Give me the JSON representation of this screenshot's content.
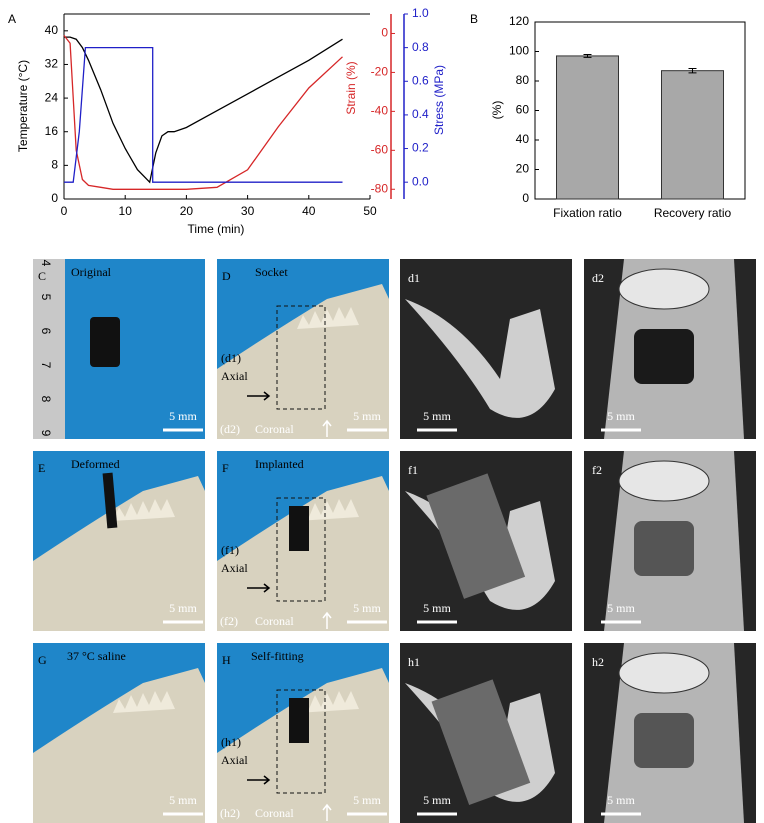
{
  "chart_data": [
    {
      "type": "line",
      "panel_label": "A",
      "xlabel": "Time (min)",
      "xlim": [
        0,
        50
      ],
      "xticks": [
        0,
        10,
        20,
        30,
        40,
        50
      ],
      "ylabel": "Temperature (°C)",
      "ylim": [
        0,
        44
      ],
      "yticks": [
        0,
        8,
        16,
        24,
        32,
        40
      ],
      "y2label": "Strain (%)",
      "y2lim": [
        -85,
        10
      ],
      "y2ticks": [
        -80,
        -60,
        -40,
        -20,
        0
      ],
      "y2color": "#d62728",
      "y3label": "Stress (MPa)",
      "y3lim": [
        -0.1,
        1.0
      ],
      "y3color": "#2020c8",
      "y3ticks": [
        {
          "value": 0,
          "label": "0.0"
        },
        {
          "value": 0.2,
          "label": "0.2"
        },
        {
          "value": 0.4,
          "label": "0.4"
        },
        {
          "value": 0.6,
          "label": "0.6"
        },
        {
          "value": 0.8,
          "label": "0.8"
        },
        {
          "value": 1.0,
          "label": "1.0"
        }
      ],
      "series": [
        {
          "axis": "y",
          "color": "#000000",
          "x": [
            0,
            1,
            2,
            3,
            4,
            6,
            8,
            10,
            12,
            14,
            15,
            16,
            17,
            18,
            20,
            25,
            30,
            35,
            40,
            45.5
          ],
          "values": [
            38.5,
            38.5,
            38,
            36,
            33,
            26,
            18,
            12,
            7,
            4,
            11,
            15,
            16,
            16,
            17,
            21,
            25,
            29,
            33,
            38
          ]
        },
        {
          "axis": "y2",
          "color": "#d62728",
          "x": [
            0,
            1,
            2,
            3,
            4,
            6,
            8,
            10,
            12,
            14,
            15,
            16,
            17,
            18,
            20,
            25,
            30,
            35,
            40,
            45.5
          ],
          "values": [
            -1,
            -5,
            -60,
            -75,
            -78,
            -79,
            -80,
            -80,
            -80,
            -80,
            -80,
            -80,
            -80,
            -80,
            -80,
            -79,
            -70,
            -48,
            -28,
            -12
          ]
        },
        {
          "axis": "y3",
          "color": "#2020c8",
          "x": [
            0,
            1.5,
            2.5,
            3.5,
            14.5,
            14.5,
            45.5
          ],
          "values": [
            0,
            0,
            0.3,
            0.8,
            0.8,
            0,
            0
          ]
        }
      ]
    },
    {
      "type": "bar",
      "panel_label": "B",
      "ylabel": "(%)",
      "categories": [
        "Fixation ratio",
        "Recovery ratio"
      ],
      "values": [
        97,
        87
      ],
      "errors": [
        1,
        1.5
      ],
      "color": "#a8a8a8",
      "ylim": [
        0,
        120
      ],
      "yticks": [
        0,
        20,
        40,
        60,
        80,
        100,
        120
      ]
    }
  ],
  "image_panels": [
    {
      "label": "C",
      "caption": "Original",
      "scale": "5 mm",
      "ruler_labels": [
        "4",
        "5",
        "6",
        "7",
        "8",
        "9"
      ]
    },
    {
      "label": "D",
      "caption": "Socket",
      "scale": "5 mm",
      "axial_label": "(d1)",
      "axial": "Axial",
      "coronal_label": "(d2)",
      "coronal": "Coronal"
    },
    {
      "label": "d1",
      "scale": "5 mm"
    },
    {
      "label": "d2",
      "scale": "5 mm"
    },
    {
      "label": "E",
      "caption": "Deformed",
      "scale": "5 mm"
    },
    {
      "label": "F",
      "caption": "Implanted",
      "scale": "5 mm",
      "axial_label": "(f1)",
      "axial": "Axial",
      "coronal_label": "(f2)",
      "coronal": "Coronal"
    },
    {
      "label": "f1",
      "scale": "5 mm"
    },
    {
      "label": "f2",
      "scale": "5 mm"
    },
    {
      "label": "G",
      "caption": "37 °C saline",
      "scale": "5 mm"
    },
    {
      "label": "H",
      "caption": "Self-fitting",
      "scale": "5 mm",
      "axial_label": "(h1)",
      "axial": "Axial",
      "coronal_label": "(h2)",
      "coronal": "Coronal"
    },
    {
      "label": "h1",
      "scale": "5 mm"
    },
    {
      "label": "h2",
      "scale": "5 mm"
    }
  ]
}
